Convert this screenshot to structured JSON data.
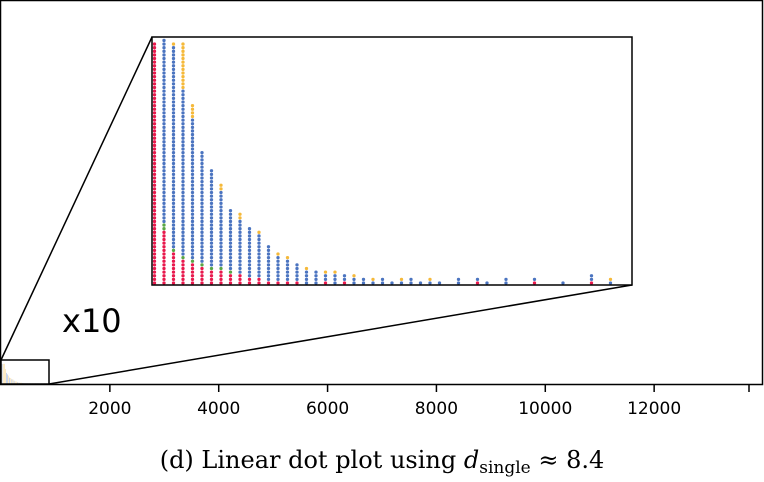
{
  "chart_data": {
    "type": "scatter",
    "variant": "linear dot plot",
    "x_ticks": [
      2000,
      4000,
      6000,
      8000,
      10000,
      12000
    ],
    "x_tick_labels": [
      "2000",
      "4000",
      "6000",
      "8000",
      "10000",
      "12000"
    ],
    "xlim": [
      0,
      14000
    ],
    "grid": false,
    "legend": "none",
    "inset": {
      "zoom_label": "x10",
      "xlim": [
        0,
        1000
      ],
      "columns": [
        {
          "x": 0,
          "stack": [
            "red",
            "red",
            "red",
            "red",
            "red",
            "red",
            "red",
            "red",
            "red",
            "red",
            "red",
            "red",
            "red",
            "red",
            "red",
            "red",
            "red",
            "red",
            "red",
            "red",
            "red",
            "red",
            "red",
            "red",
            "red",
            "red",
            "red",
            "red",
            "red",
            "red",
            "red",
            "red",
            "red",
            "red",
            "red",
            "red",
            "red",
            "red",
            "red",
            "red",
            "red",
            "red",
            "red",
            "red",
            "red",
            "red",
            "red",
            "red",
            "red",
            "red",
            "red",
            "red",
            "red",
            "red",
            "red",
            "red",
            "red",
            "red",
            "red",
            "red",
            "red",
            "red",
            "red",
            "red",
            "red",
            "red",
            "red"
          ]
        },
        {
          "x": 20,
          "stack": [
            "red",
            "red",
            "red",
            "red",
            "red",
            "red",
            "red",
            "red",
            "red",
            "red",
            "red",
            "red",
            "red",
            "red",
            "red",
            "green",
            "green",
            "blue",
            "blue",
            "blue",
            "blue",
            "blue",
            "blue",
            "blue",
            "blue",
            "blue",
            "blue",
            "blue",
            "blue",
            "blue",
            "blue",
            "blue",
            "blue",
            "blue",
            "blue",
            "blue",
            "blue",
            "blue",
            "blue",
            "blue",
            "blue",
            "blue",
            "blue",
            "blue",
            "blue",
            "blue",
            "blue",
            "blue",
            "blue",
            "blue",
            "blue",
            "blue",
            "blue",
            "blue",
            "blue",
            "blue",
            "blue",
            "blue",
            "blue",
            "blue",
            "blue",
            "blue",
            "blue",
            "blue",
            "blue",
            "blue",
            "blue",
            "blue"
          ]
        },
        {
          "x": 40,
          "stack": [
            "red",
            "red",
            "red",
            "red",
            "red",
            "red",
            "red",
            "red",
            "red",
            "green",
            "blue",
            "blue",
            "blue",
            "blue",
            "blue",
            "blue",
            "blue",
            "blue",
            "blue",
            "blue",
            "blue",
            "blue",
            "blue",
            "blue",
            "blue",
            "blue",
            "blue",
            "blue",
            "blue",
            "blue",
            "blue",
            "blue",
            "blue",
            "blue",
            "blue",
            "blue",
            "blue",
            "blue",
            "blue",
            "blue",
            "blue",
            "blue",
            "blue",
            "blue",
            "blue",
            "blue",
            "blue",
            "blue",
            "blue",
            "blue",
            "blue",
            "blue",
            "blue",
            "blue",
            "blue",
            "blue",
            "blue",
            "blue",
            "blue",
            "blue",
            "blue",
            "blue",
            "blue",
            "blue",
            "blue",
            "blue",
            "orange"
          ]
        },
        {
          "x": 60,
          "stack": [
            "red",
            "red",
            "red",
            "red",
            "red",
            "red",
            "red",
            "green",
            "blue",
            "blue",
            "blue",
            "blue",
            "blue",
            "blue",
            "blue",
            "blue",
            "blue",
            "blue",
            "blue",
            "blue",
            "blue",
            "blue",
            "blue",
            "blue",
            "blue",
            "blue",
            "blue",
            "blue",
            "blue",
            "blue",
            "blue",
            "blue",
            "blue",
            "blue",
            "blue",
            "blue",
            "blue",
            "blue",
            "blue",
            "blue",
            "blue",
            "blue",
            "blue",
            "blue",
            "blue",
            "blue",
            "blue",
            "blue",
            "blue",
            "blue",
            "blue",
            "blue",
            "blue",
            "blue",
            "orange",
            "orange",
            "orange",
            "orange",
            "orange",
            "orange",
            "orange",
            "orange",
            "orange",
            "orange",
            "orange",
            "orange",
            "orange"
          ]
        },
        {
          "x": 80,
          "stack": [
            "red",
            "red",
            "red",
            "red",
            "red",
            "red",
            "green",
            "blue",
            "blue",
            "blue",
            "blue",
            "blue",
            "blue",
            "blue",
            "blue",
            "blue",
            "blue",
            "blue",
            "blue",
            "blue",
            "blue",
            "blue",
            "blue",
            "blue",
            "blue",
            "blue",
            "blue",
            "blue",
            "blue",
            "blue",
            "blue",
            "blue",
            "blue",
            "blue",
            "blue",
            "blue",
            "blue",
            "blue",
            "blue",
            "blue",
            "blue",
            "blue",
            "blue",
            "blue",
            "blue",
            "blue",
            "orange",
            "orange",
            "orange",
            "orange"
          ]
        },
        {
          "x": 100,
          "stack": [
            "red",
            "red",
            "red",
            "red",
            "red",
            "green",
            "blue",
            "blue",
            "blue",
            "blue",
            "blue",
            "blue",
            "blue",
            "blue",
            "blue",
            "blue",
            "blue",
            "blue",
            "blue",
            "blue",
            "blue",
            "blue",
            "blue",
            "blue",
            "blue",
            "blue",
            "blue",
            "blue",
            "blue",
            "blue",
            "blue",
            "blue",
            "blue",
            "blue",
            "blue",
            "blue",
            "blue"
          ]
        },
        {
          "x": 120,
          "stack": [
            "red",
            "red",
            "red",
            "red",
            "green",
            "blue",
            "blue",
            "blue",
            "blue",
            "blue",
            "blue",
            "blue",
            "blue",
            "blue",
            "blue",
            "blue",
            "blue",
            "blue",
            "blue",
            "blue",
            "blue",
            "blue",
            "blue",
            "blue",
            "blue",
            "blue",
            "blue",
            "blue",
            "blue",
            "blue",
            "blue",
            "blue"
          ]
        },
        {
          "x": 140,
          "stack": [
            "red",
            "red",
            "red",
            "red",
            "green",
            "blue",
            "blue",
            "blue",
            "blue",
            "blue",
            "blue",
            "blue",
            "blue",
            "blue",
            "blue",
            "blue",
            "blue",
            "blue",
            "blue",
            "blue",
            "blue",
            "blue",
            "blue",
            "blue",
            "blue",
            "blue",
            "orange",
            "orange"
          ]
        },
        {
          "x": 160,
          "stack": [
            "red",
            "red",
            "red",
            "green",
            "blue",
            "blue",
            "blue",
            "blue",
            "blue",
            "blue",
            "blue",
            "blue",
            "blue",
            "blue",
            "blue",
            "blue",
            "blue",
            "blue",
            "blue",
            "blue",
            "blue"
          ]
        },
        {
          "x": 180,
          "stack": [
            "red",
            "red",
            "red",
            "blue",
            "blue",
            "blue",
            "blue",
            "blue",
            "blue",
            "blue",
            "blue",
            "blue",
            "blue",
            "blue",
            "blue",
            "blue",
            "blue",
            "blue",
            "orange",
            "orange"
          ]
        },
        {
          "x": 200,
          "stack": [
            "red",
            "red",
            "blue",
            "blue",
            "blue",
            "blue",
            "blue",
            "blue",
            "blue",
            "blue",
            "blue",
            "blue",
            "blue",
            "blue",
            "blue",
            "blue"
          ]
        },
        {
          "x": 220,
          "stack": [
            "red",
            "red",
            "blue",
            "blue",
            "blue",
            "blue",
            "blue",
            "blue",
            "blue",
            "blue",
            "blue",
            "blue",
            "blue",
            "blue",
            "orange"
          ]
        },
        {
          "x": 240,
          "stack": [
            "red",
            "blue",
            "blue",
            "blue",
            "blue",
            "blue",
            "blue",
            "blue",
            "blue",
            "blue",
            "blue"
          ]
        },
        {
          "x": 260,
          "stack": [
            "red",
            "blue",
            "blue",
            "blue",
            "blue",
            "blue",
            "blue",
            "blue",
            "orange"
          ]
        },
        {
          "x": 280,
          "stack": [
            "red",
            "blue",
            "blue",
            "blue",
            "blue",
            "blue",
            "blue",
            "orange"
          ]
        },
        {
          "x": 300,
          "stack": [
            "red",
            "blue",
            "blue",
            "blue",
            "blue",
            "blue"
          ]
        },
        {
          "x": 320,
          "stack": [
            "blue",
            "blue",
            "blue",
            "blue",
            "orange"
          ]
        },
        {
          "x": 340,
          "stack": [
            "blue",
            "blue",
            "blue",
            "blue"
          ]
        },
        {
          "x": 360,
          "stack": [
            "red",
            "blue",
            "blue",
            "orange"
          ]
        },
        {
          "x": 380,
          "stack": [
            "blue",
            "blue",
            "blue",
            "orange"
          ]
        },
        {
          "x": 400,
          "stack": [
            "red",
            "blue",
            "blue"
          ]
        },
        {
          "x": 420,
          "stack": [
            "blue",
            "blue",
            "orange"
          ]
        },
        {
          "x": 440,
          "stack": [
            "blue",
            "blue"
          ]
        },
        {
          "x": 460,
          "stack": [
            "blue",
            "orange"
          ]
        },
        {
          "x": 480,
          "stack": [
            "blue",
            "blue"
          ]
        },
        {
          "x": 500,
          "stack": [
            "blue"
          ]
        },
        {
          "x": 520,
          "stack": [
            "blue",
            "orange"
          ]
        },
        {
          "x": 540,
          "stack": [
            "blue",
            "blue"
          ]
        },
        {
          "x": 560,
          "stack": [
            "blue"
          ]
        },
        {
          "x": 580,
          "stack": [
            "blue",
            "orange"
          ]
        },
        {
          "x": 600,
          "stack": [
            "blue"
          ]
        },
        {
          "x": 640,
          "stack": [
            "blue",
            "blue"
          ]
        },
        {
          "x": 680,
          "stack": [
            "red",
            "blue"
          ]
        },
        {
          "x": 700,
          "stack": [
            "blue"
          ]
        },
        {
          "x": 740,
          "stack": [
            "blue",
            "blue"
          ]
        },
        {
          "x": 800,
          "stack": [
            "red",
            "blue"
          ]
        },
        {
          "x": 860,
          "stack": [
            "blue"
          ]
        },
        {
          "x": 920,
          "stack": [
            "red",
            "blue",
            "blue"
          ]
        },
        {
          "x": 960,
          "stack": [
            "blue",
            "orange"
          ]
        }
      ]
    },
    "colors": {
      "red": "#e8194d",
      "blue": "#4b74c0",
      "orange": "#f5b93a",
      "green": "#5aa646"
    }
  },
  "caption": {
    "prefix": "(d) Linear dot plot using ",
    "var": "d",
    "sub": "single",
    "suffix": " ≈ 8.4"
  }
}
